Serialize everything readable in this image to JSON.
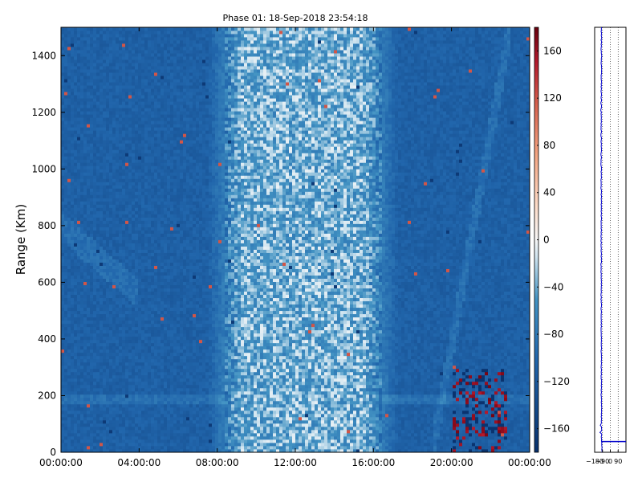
{
  "chart_data": [
    {
      "type": "heatmap",
      "title": "Phase 01: 18-Sep-2018 23:54:18",
      "xlabel": "",
      "ylabel": "Range (Km)",
      "x_tick_labels": [
        "00:00:00",
        "04:00:00",
        "08:00:00",
        "12:00:00",
        "16:00:00",
        "20:00:00",
        "00:00:00"
      ],
      "x_range_hours": [
        0,
        24
      ],
      "y_ticks": [
        0,
        200,
        400,
        600,
        800,
        1000,
        1200,
        1400
      ],
      "y_range": [
        0,
        1500
      ],
      "colorbar": {
        "ticks": [
          -160,
          -120,
          -80,
          -40,
          0,
          40,
          80,
          120,
          160
        ],
        "tick_labels": [
          "−160",
          "−120",
          "−80",
          "−40",
          "0",
          "40",
          "80",
          "120",
          "160"
        ],
        "range": [
          -180,
          180
        ],
        "colormap": "blue-white-red",
        "colors": {
          "low": "#08306b",
          "mid": "#f7f7f7",
          "high": "#67000d"
        }
      },
      "description_values": {
        "background_level": -110,
        "midday_level": -40,
        "midday_hours": [
          9.3,
          15.5
        ]
      },
      "grid": false
    },
    {
      "type": "line",
      "title": "",
      "xlabel": "",
      "ylabel": "",
      "x_tick_labels": [
        "−180",
        "−90",
        "0",
        "90"
      ],
      "xlim": [
        -180,
        180
      ],
      "ylim": [
        0,
        1500
      ],
      "grid": true,
      "line_color": "#0000cc",
      "series": [
        {
          "values_range_km": [
            0,
            50,
            100,
            150,
            200,
            300,
            400,
            500,
            600,
            700,
            800,
            900,
            1000,
            1100,
            1200,
            1300,
            1400,
            1500
          ],
          "values_phase": [
            -95,
            -100,
            -104,
            -100,
            -104,
            -103,
            -104,
            -105,
            -104,
            -105,
            -104,
            -104,
            -105,
            -104,
            -105,
            -104,
            -103,
            -104
          ]
        }
      ]
    }
  ]
}
